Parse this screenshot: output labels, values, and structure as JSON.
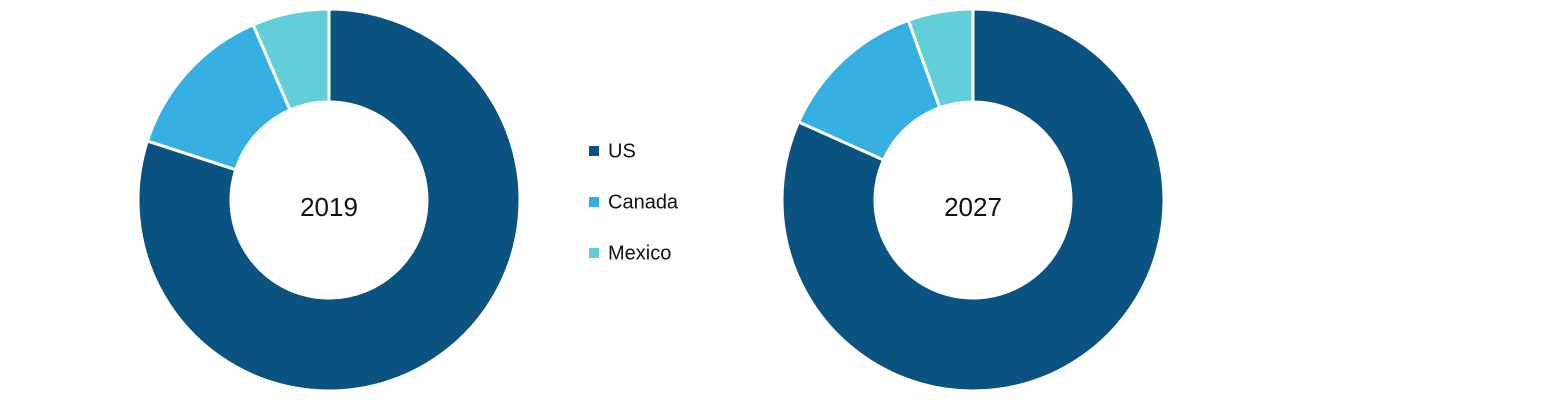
{
  "chart_data": [
    {
      "type": "donut",
      "title": "2019",
      "categories": [
        "US",
        "Canada",
        "Mexico"
      ],
      "values": [
        80,
        13.5,
        6.5
      ],
      "colors": [
        "#0a527f",
        "#36b0e2",
        "#62cfd8"
      ]
    },
    {
      "type": "donut",
      "title": "2027",
      "categories": [
        "US",
        "Canada",
        "Mexico"
      ],
      "values": [
        81.7,
        12.8,
        5.5
      ],
      "colors": [
        "#0a527f",
        "#36b0e2",
        "#62cfd8"
      ]
    }
  ]
}
